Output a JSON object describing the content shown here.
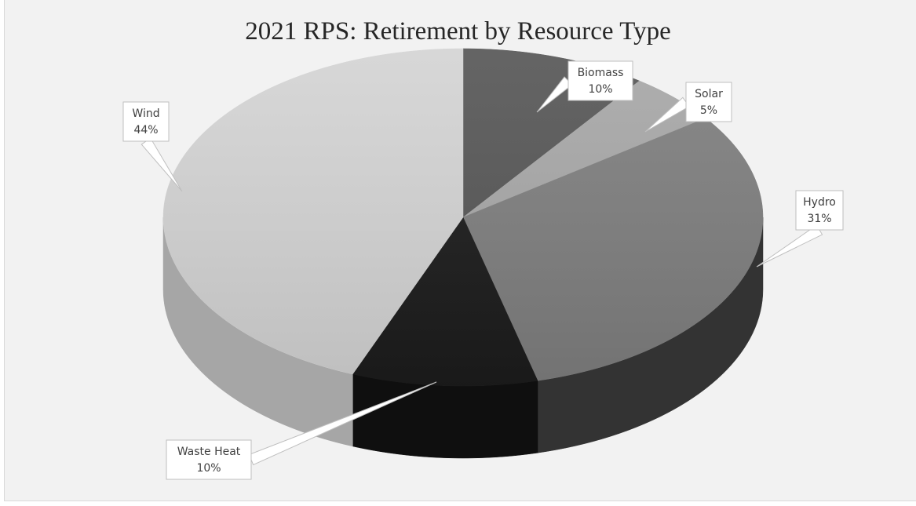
{
  "chart_data": {
    "type": "pie",
    "title": "2021 RPS: Retirement by Resource Type",
    "categories": [
      "Biomass",
      "Solar",
      "Hydro",
      "Waste Heat",
      "Wind"
    ],
    "values": [
      10,
      5,
      31,
      10,
      44
    ],
    "value_labels": [
      "10%",
      "5%",
      "31%",
      "10%",
      "44%"
    ],
    "unit": "%",
    "style": "3d",
    "legend": "none",
    "colors": [
      "#575757",
      "#a8a8a8",
      "#7f7f7f",
      "#1c1c1c",
      "#d4d4d4"
    ],
    "side_colors": [
      "#3d3d3d",
      "#7a7a7a",
      "#333333",
      "#0f0f0f",
      "#a6a6a6"
    ]
  }
}
